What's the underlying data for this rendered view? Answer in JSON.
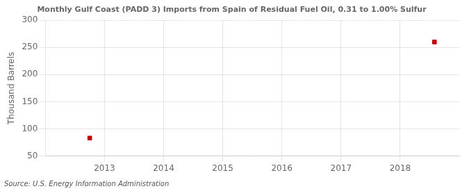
{
  "chart_data": {
    "type": "scatter",
    "title": "Monthly Gulf Coast (PADD 3) Imports from Spain of Residual Fuel Oil, 0.31 to 1.00% Sulfur",
    "ylabel": "Thousand Barrels",
    "source": "Source: U.S. Energy Information Administration",
    "x": [
      2012.75,
      2018.58
    ],
    "values": [
      83,
      260
    ],
    "color": "#c00000",
    "marker": "square",
    "xlim": [
      2012.0,
      2019.0
    ],
    "xticks": [
      2013,
      2014,
      2015,
      2016,
      2017,
      2018
    ],
    "ylim": [
      50,
      300
    ],
    "yticks": [
      50,
      100,
      150,
      200,
      250,
      300
    ],
    "grid": true
  }
}
